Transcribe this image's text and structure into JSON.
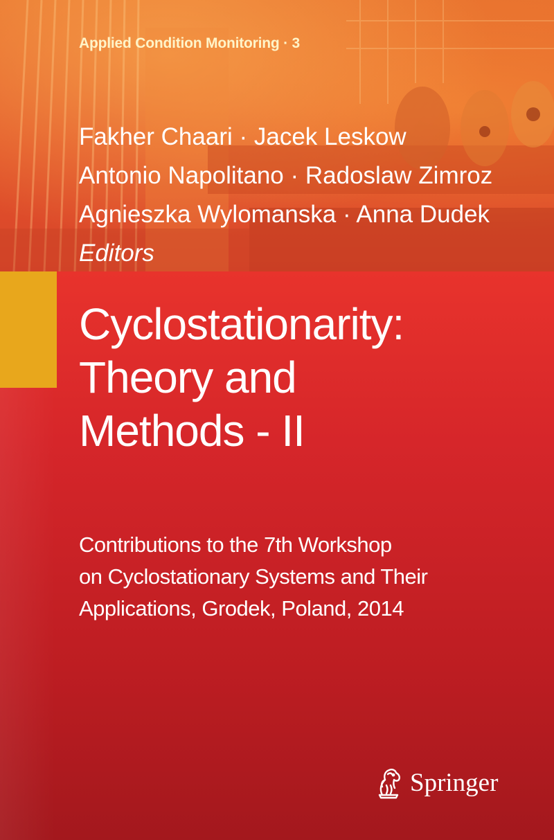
{
  "series": {
    "label": "Applied Condition Monitoring · 3"
  },
  "editors": {
    "lines": [
      "Fakher Chaari · Jacek Leskow",
      "Antonio Napolitano · Radoslaw Zimroz",
      "Agnieszka Wylomanska · Anna Dudek"
    ],
    "role": "Editors"
  },
  "title": {
    "lines": [
      "Cyclostationarity:",
      "Theory and",
      "Methods - II"
    ]
  },
  "subtitle": {
    "lines": [
      "Contributions to the 7th Workshop",
      "on Cyclostationary Systems and Their",
      "Applications, Grodek, Poland, 2014"
    ]
  },
  "publisher": {
    "name": "Springer",
    "logo_icon": "springer-horse-icon"
  },
  "colors": {
    "accent_yellow": "#e8a71c",
    "panel_red": "#d6262a",
    "photo_orange": "#e2552a"
  }
}
